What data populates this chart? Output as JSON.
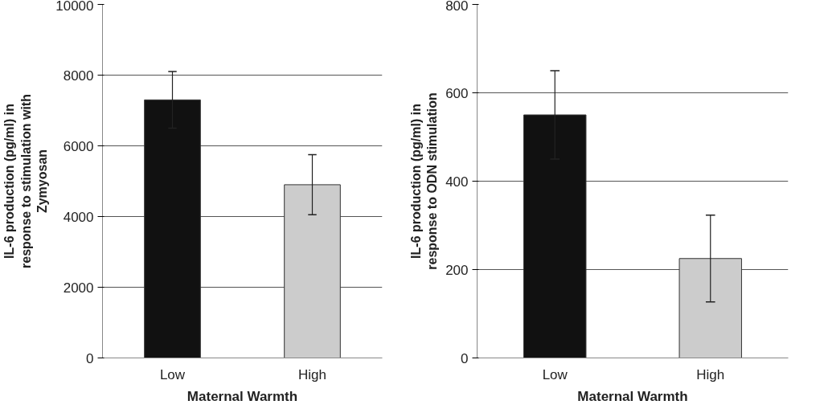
{
  "chart_data": [
    {
      "type": "bar",
      "categories": [
        "Low",
        "High"
      ],
      "values": [
        7300,
        4900
      ],
      "colors": [
        "#111111",
        "#cccccc"
      ],
      "errors": [
        800,
        850
      ],
      "ylabel": "IL-6 production (pg/ml) in response to stimulation with Zymyosan",
      "xlabel": "Maternal Warmth",
      "ylim": [
        0,
        10000
      ],
      "yticks": [
        0,
        2000,
        4000,
        6000,
        8000,
        10000
      ],
      "grid": "y"
    },
    {
      "type": "bar",
      "categories": [
        "Low",
        "High"
      ],
      "values": [
        550,
        225
      ],
      "colors": [
        "#111111",
        "#cccccc"
      ],
      "errors": [
        100,
        98
      ],
      "ylabel": "IL-6 production (pg/ml) in response to ODN stimulation",
      "xlabel": "Maternal Warmth",
      "ylim": [
        0,
        800
      ],
      "yticks": [
        0,
        200,
        400,
        600,
        800
      ],
      "grid": "y"
    }
  ]
}
